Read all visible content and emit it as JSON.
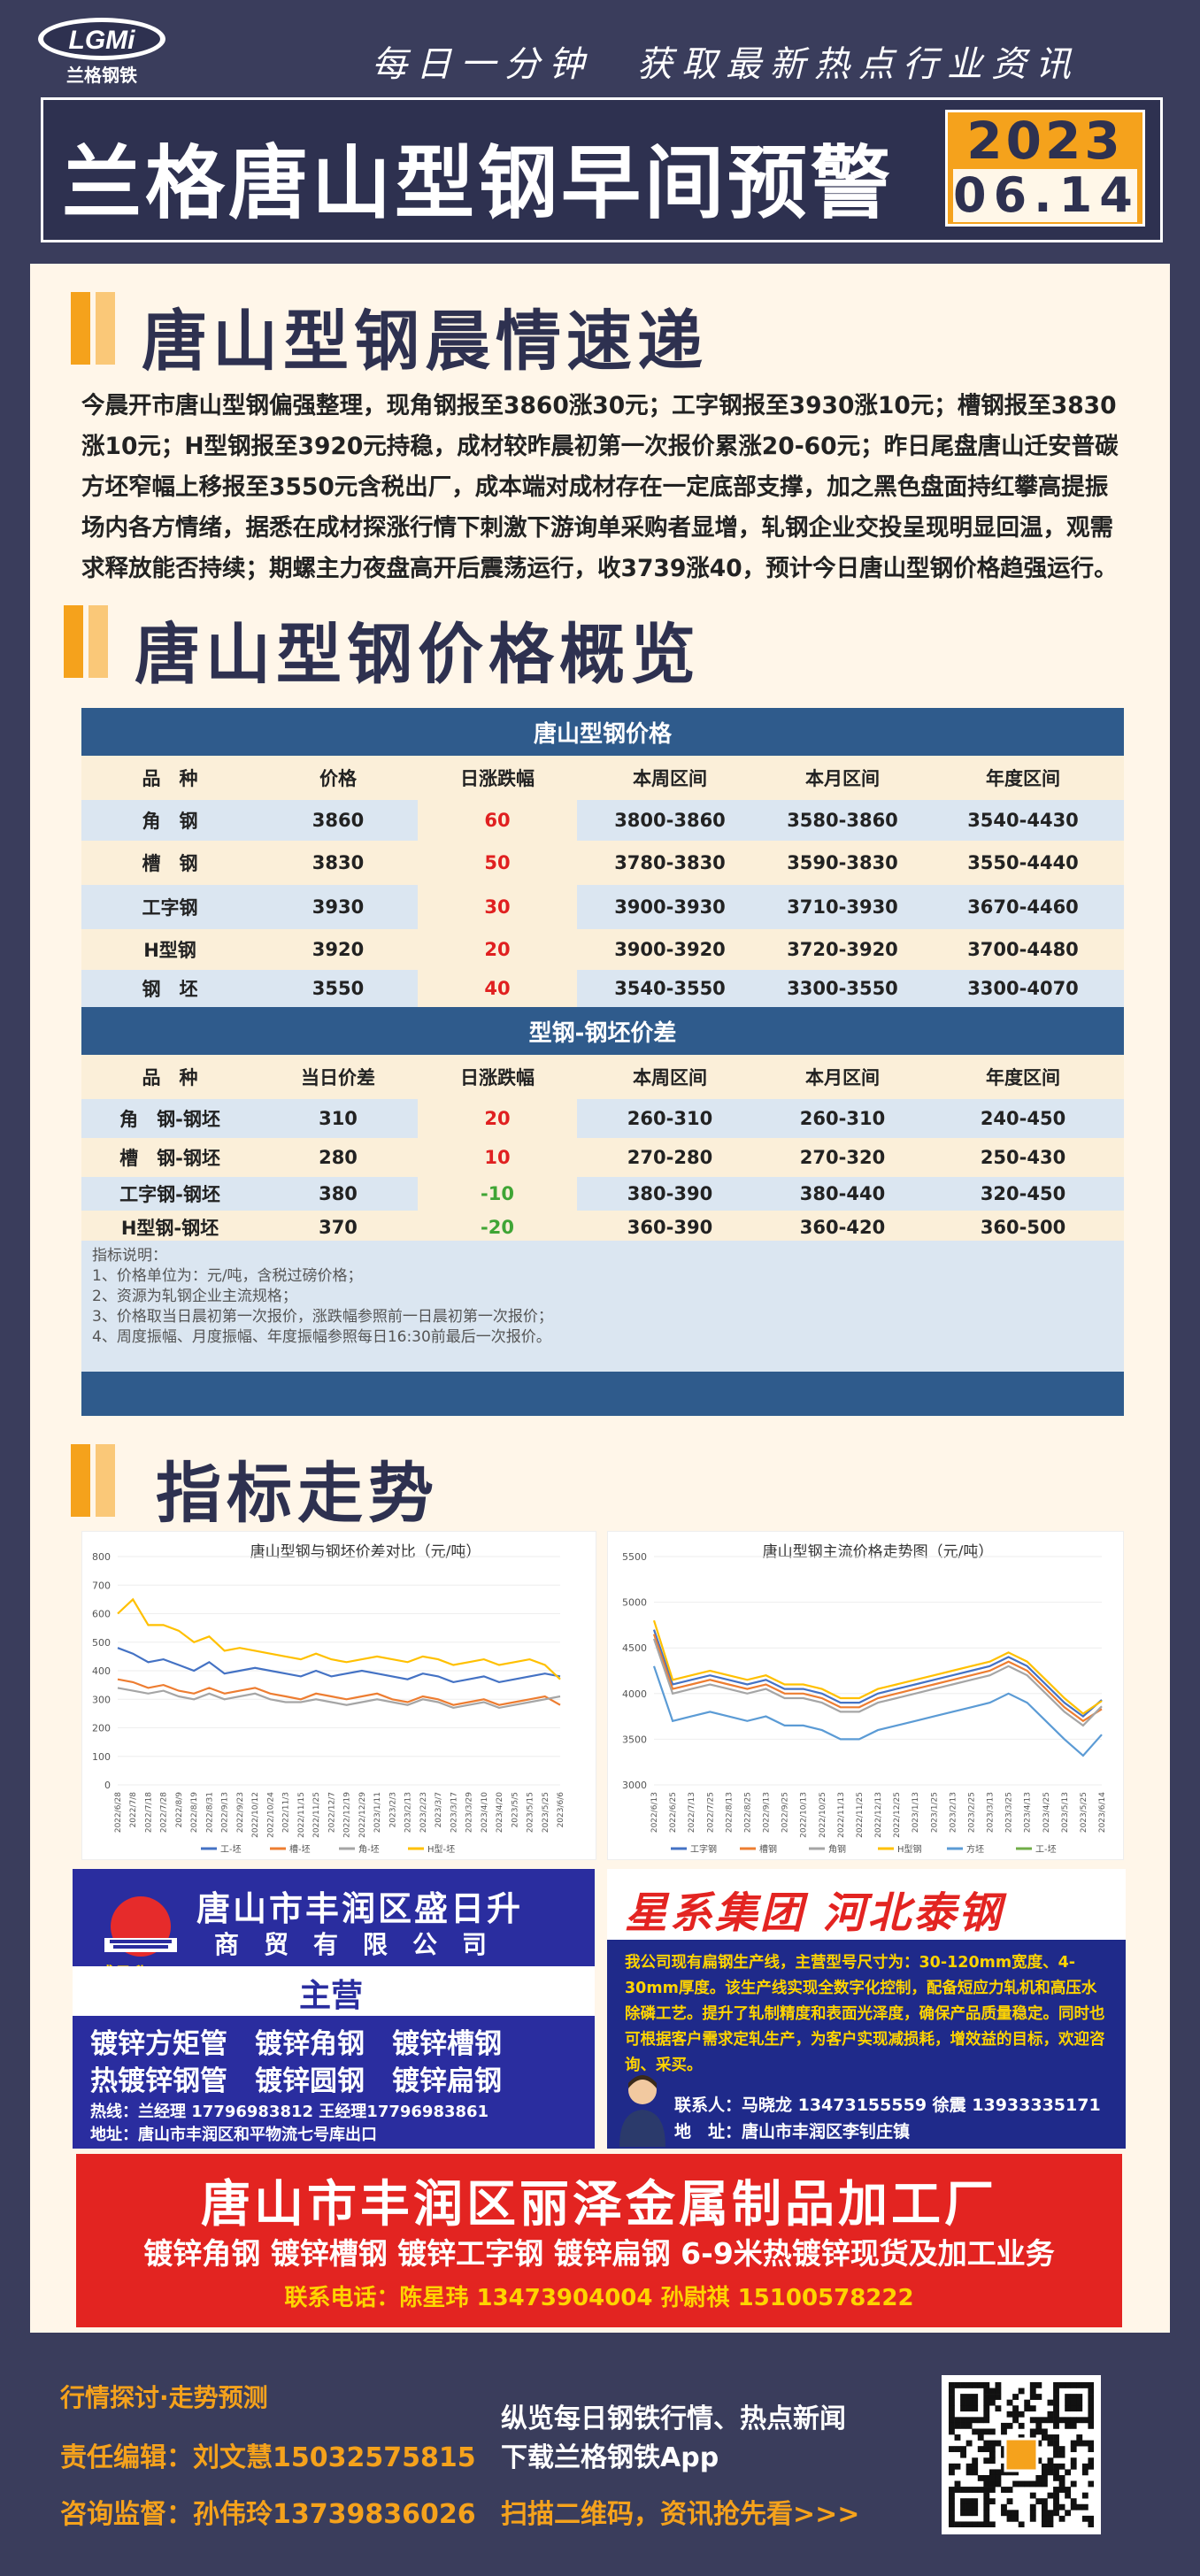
{
  "header": {
    "logo_text": "LGMi",
    "logo_sub": "兰格钢铁",
    "slogan": "每日一分钟　获取最新热点行业资讯",
    "title": "兰格唐山型钢早间预警",
    "year": "2023",
    "month_day": "06.14"
  },
  "section1": {
    "title": "唐山型钢晨情速递",
    "paragraph": "今晨开市唐山型钢偏强整理，现角钢报至3860涨30元；工字钢报至3930涨10元；槽钢报至3830涨10元；H型钢报至3920元持稳，成材较昨晨初第一次报价累涨20-60元；昨日尾盘唐山迁安普碳方坯窄幅上移报至3550元含税出厂，成本端对成材存在一定底部支撑，加之黑色盘面持红攀高提振场内各方情绪，据悉在成材探涨行情下刺激下游询单采购者显增，轧钢企业交投呈现明显回温，观需求释放能否持续；期螺主力夜盘高开后震荡运行，收3739涨40，预计今日唐山型钢价格趋强运行。"
  },
  "section2": {
    "title": "唐山型钢价格概览",
    "table1_caption": "唐山型钢价格",
    "headers1": [
      "品　种",
      "价格",
      "日涨跌幅",
      "本周区间",
      "本月区间",
      "年度区间"
    ],
    "rows1": [
      [
        "角　钢",
        "3860",
        "60",
        "3800-3860",
        "3580-3860",
        "3540-4430"
      ],
      [
        "槽　钢",
        "3830",
        "50",
        "3780-3830",
        "3590-3830",
        "3550-4440"
      ],
      [
        "工字钢",
        "3930",
        "30",
        "3900-3930",
        "3710-3930",
        "3670-4460"
      ],
      [
        "H型钢",
        "3920",
        "20",
        "3900-3920",
        "3720-3920",
        "3700-4480"
      ],
      [
        "钢　坯",
        "3550",
        "40",
        "3540-3550",
        "3300-3550",
        "3300-4070"
      ]
    ],
    "table2_caption": "型钢-钢坯价差",
    "headers2": [
      "品　种",
      "当日价差",
      "日涨跌幅",
      "本周区间",
      "本月区间",
      "年度区间"
    ],
    "rows2": [
      [
        "角　钢-钢坯",
        "310",
        "20",
        "260-310",
        "260-310",
        "240-450"
      ],
      [
        "槽　钢-钢坯",
        "280",
        "10",
        "270-280",
        "270-320",
        "250-430"
      ],
      [
        "工字钢-钢坯",
        "380",
        "-10",
        "380-390",
        "380-440",
        "320-450"
      ],
      [
        "H型钢-钢坯",
        "370",
        "-20",
        "360-390",
        "360-420",
        "360-500"
      ]
    ],
    "notes": [
      "指标说明：",
      "1、价格单位为：元/吨，含税过磅价格；",
      "2、资源为轧钢企业主流规格；",
      "3、价格取当日晨初第一次报价，涨跌幅参照前一日晨初第一次报价；",
      "4、周度振幅、月度振幅、年度振幅参照每日16:30前最后一次报价。"
    ]
  },
  "section3": {
    "title": "指标走势"
  },
  "chart_data": [
    {
      "type": "line",
      "title": "唐山型钢与钢坯价差对比（元/吨）",
      "ylim": [
        0,
        800
      ],
      "yticks": [
        "800",
        "700",
        "600",
        "500",
        "400",
        "300",
        "200",
        "100",
        "0"
      ],
      "x": [
        "2022/6/28",
        "2022/7/8",
        "2022/7/18",
        "2022/7/28",
        "2022/8/9",
        "2022/8/19",
        "2022/8/31",
        "2022/9/13",
        "2022/9/23",
        "2022/10/12",
        "2022/10/24",
        "2022/11/3",
        "2022/11/15",
        "2022/11/25",
        "2022/12/7",
        "2022/12/19",
        "2022/12/29",
        "2023/1/11",
        "2023/2/3",
        "2023/2/13",
        "2023/2/23",
        "2023/3/7",
        "2023/3/17",
        "2023/3/29",
        "2023/4/10",
        "2023/4/20",
        "2023/5/5",
        "2023/5/15",
        "2023/5/25",
        "2023/6/6"
      ],
      "series": [
        {
          "name": "工-坯",
          "color": "#4472c4",
          "values": [
            480,
            460,
            430,
            440,
            420,
            400,
            430,
            390,
            400,
            410,
            400,
            390,
            380,
            400,
            380,
            390,
            400,
            390,
            380,
            370,
            390,
            380,
            360,
            370,
            380,
            360,
            370,
            380,
            390,
            380
          ]
        },
        {
          "name": "槽-坯",
          "color": "#ed7d31",
          "values": [
            370,
            360,
            340,
            350,
            330,
            320,
            340,
            320,
            330,
            340,
            320,
            310,
            300,
            320,
            310,
            300,
            310,
            320,
            300,
            290,
            310,
            300,
            280,
            290,
            300,
            280,
            290,
            300,
            310,
            280
          ]
        },
        {
          "name": "角-坯",
          "color": "#a5a5a5",
          "values": [
            340,
            330,
            320,
            330,
            310,
            300,
            320,
            300,
            310,
            320,
            300,
            290,
            290,
            300,
            290,
            280,
            290,
            300,
            290,
            280,
            300,
            290,
            270,
            280,
            290,
            270,
            280,
            290,
            300,
            310
          ]
        },
        {
          "name": "H型-坯",
          "color": "#ffc000",
          "values": [
            600,
            650,
            560,
            560,
            540,
            500,
            520,
            470,
            480,
            470,
            460,
            450,
            440,
            460,
            440,
            430,
            440,
            450,
            440,
            430,
            450,
            440,
            420,
            430,
            440,
            420,
            430,
            440,
            420,
            370
          ]
        }
      ]
    },
    {
      "type": "line",
      "title": "唐山型钢主流价格走势图（元/吨）",
      "ylim": [
        3000,
        5500
      ],
      "yticks": [
        "5500",
        "5000",
        "4500",
        "4000",
        "3500",
        "3000"
      ],
      "x": [
        "2022/6/13",
        "2022/6/25",
        "2022/7/13",
        "2022/7/25",
        "2022/8/13",
        "2022/8/25",
        "2022/9/13",
        "2022/9/25",
        "2022/10/13",
        "2022/10/25",
        "2022/11/13",
        "2022/11/25",
        "2022/12/13",
        "2022/12/25",
        "2023/1/13",
        "2023/1/25",
        "2023/2/13",
        "2023/2/25",
        "2023/3/13",
        "2023/3/25",
        "2023/4/13",
        "2023/4/25",
        "2023/5/13",
        "2023/5/25",
        "2023/6/14"
      ],
      "series": [
        {
          "name": "工字钢",
          "color": "#4472c4",
          "values": [
            4700,
            4100,
            4150,
            4200,
            4150,
            4100,
            4150,
            4050,
            4050,
            4000,
            3900,
            3900,
            4000,
            4050,
            4100,
            4150,
            4200,
            4250,
            4300,
            4400,
            4300,
            4100,
            3900,
            3750,
            3930
          ]
        },
        {
          "name": "槽钢",
          "color": "#ed7d31",
          "values": [
            4650,
            4050,
            4100,
            4150,
            4100,
            4050,
            4100,
            4000,
            4000,
            3950,
            3850,
            3850,
            3950,
            4000,
            4050,
            4100,
            4150,
            4200,
            4250,
            4350,
            4250,
            4050,
            3850,
            3700,
            3830
          ]
        },
        {
          "name": "角钢",
          "color": "#a5a5a5",
          "values": [
            4600,
            4000,
            4050,
            4100,
            4050,
            4000,
            4050,
            3950,
            3950,
            3900,
            3800,
            3800,
            3900,
            3950,
            4000,
            4050,
            4100,
            4150,
            4200,
            4300,
            4200,
            4000,
            3800,
            3650,
            3860
          ]
        },
        {
          "name": "H型钢",
          "color": "#ffc000",
          "values": [
            4800,
            4150,
            4200,
            4250,
            4200,
            4150,
            4200,
            4100,
            4100,
            4050,
            3950,
            3950,
            4050,
            4100,
            4150,
            4200,
            4250,
            4300,
            4350,
            4450,
            4350,
            4150,
            3950,
            3780,
            3920
          ]
        },
        {
          "name": "方坯",
          "color": "#5b9bd5",
          "values": [
            4300,
            3700,
            3750,
            3800,
            3750,
            3700,
            3750,
            3650,
            3650,
            3600,
            3500,
            3500,
            3600,
            3650,
            3700,
            3750,
            3800,
            3850,
            3900,
            4000,
            3900,
            3700,
            3500,
            3320,
            3550
          ]
        },
        {
          "name": "工-坯",
          "color": "#70ad47",
          "values": [
            null,
            null,
            null,
            null,
            null,
            null,
            null,
            null,
            null,
            null,
            null,
            null,
            null,
            null,
            null,
            null,
            null,
            null,
            null,
            null,
            null,
            null,
            null,
            null,
            null
          ]
        }
      ]
    }
  ],
  "ads": {
    "ad1": {
      "company": "唐山市丰润区盛日升",
      "sub": "商　贸　有　限　公　司",
      "logo_label": "盛日升",
      "main_label": "主营",
      "line1": "镀锌方矩管　镀锌角钢　镀锌槽钢",
      "line2": "热镀锌钢管　镀锌圆钢　镀锌扁钢",
      "contact": "热线：兰经理 17796983812  王经理17796983861",
      "address": "地址：唐山市丰润区和平物流七号库出口"
    },
    "ad2": {
      "title": "星系集团  河北泰钢",
      "text": "我公司现有扁钢生产线，主营型号尺寸为：30-120mm宽度、4-30mm厚度。该生产线实现全数字化控制，配备短应力轧机和高压水除磷工艺。提升了轧制精度和表面光泽度，确保产品质量稳定。同时也可根据客户需求定轧生产，为客户实现减损耗，增效益的目标，欢迎咨询、采买。",
      "contact": "联系人：马晓龙  13473155559  徐震  13933335171",
      "address": "地　址：唐山市丰润区李钊庄镇"
    },
    "ad3": {
      "title": "唐山市丰润区丽泽金属制品加工厂",
      "line": "镀锌角钢  镀锌槽钢  镀锌工字钢  镀锌扁钢  6-9米热镀锌现货及加工业务",
      "contact": "联系电话：陈星玮  13473904004  孙尉祺  15100578222"
    }
  },
  "footer": {
    "left1": "行情探讨·走势预测",
    "left2": "责任编辑：刘文慧15032575815",
    "left3": "咨询监督：孙伟玲13739836026",
    "right1": "纵览每日钢铁行情、热点新闻",
    "right2": "下载兰格钢铁App",
    "right3": "扫描二维码，资讯抢先看>>>"
  }
}
